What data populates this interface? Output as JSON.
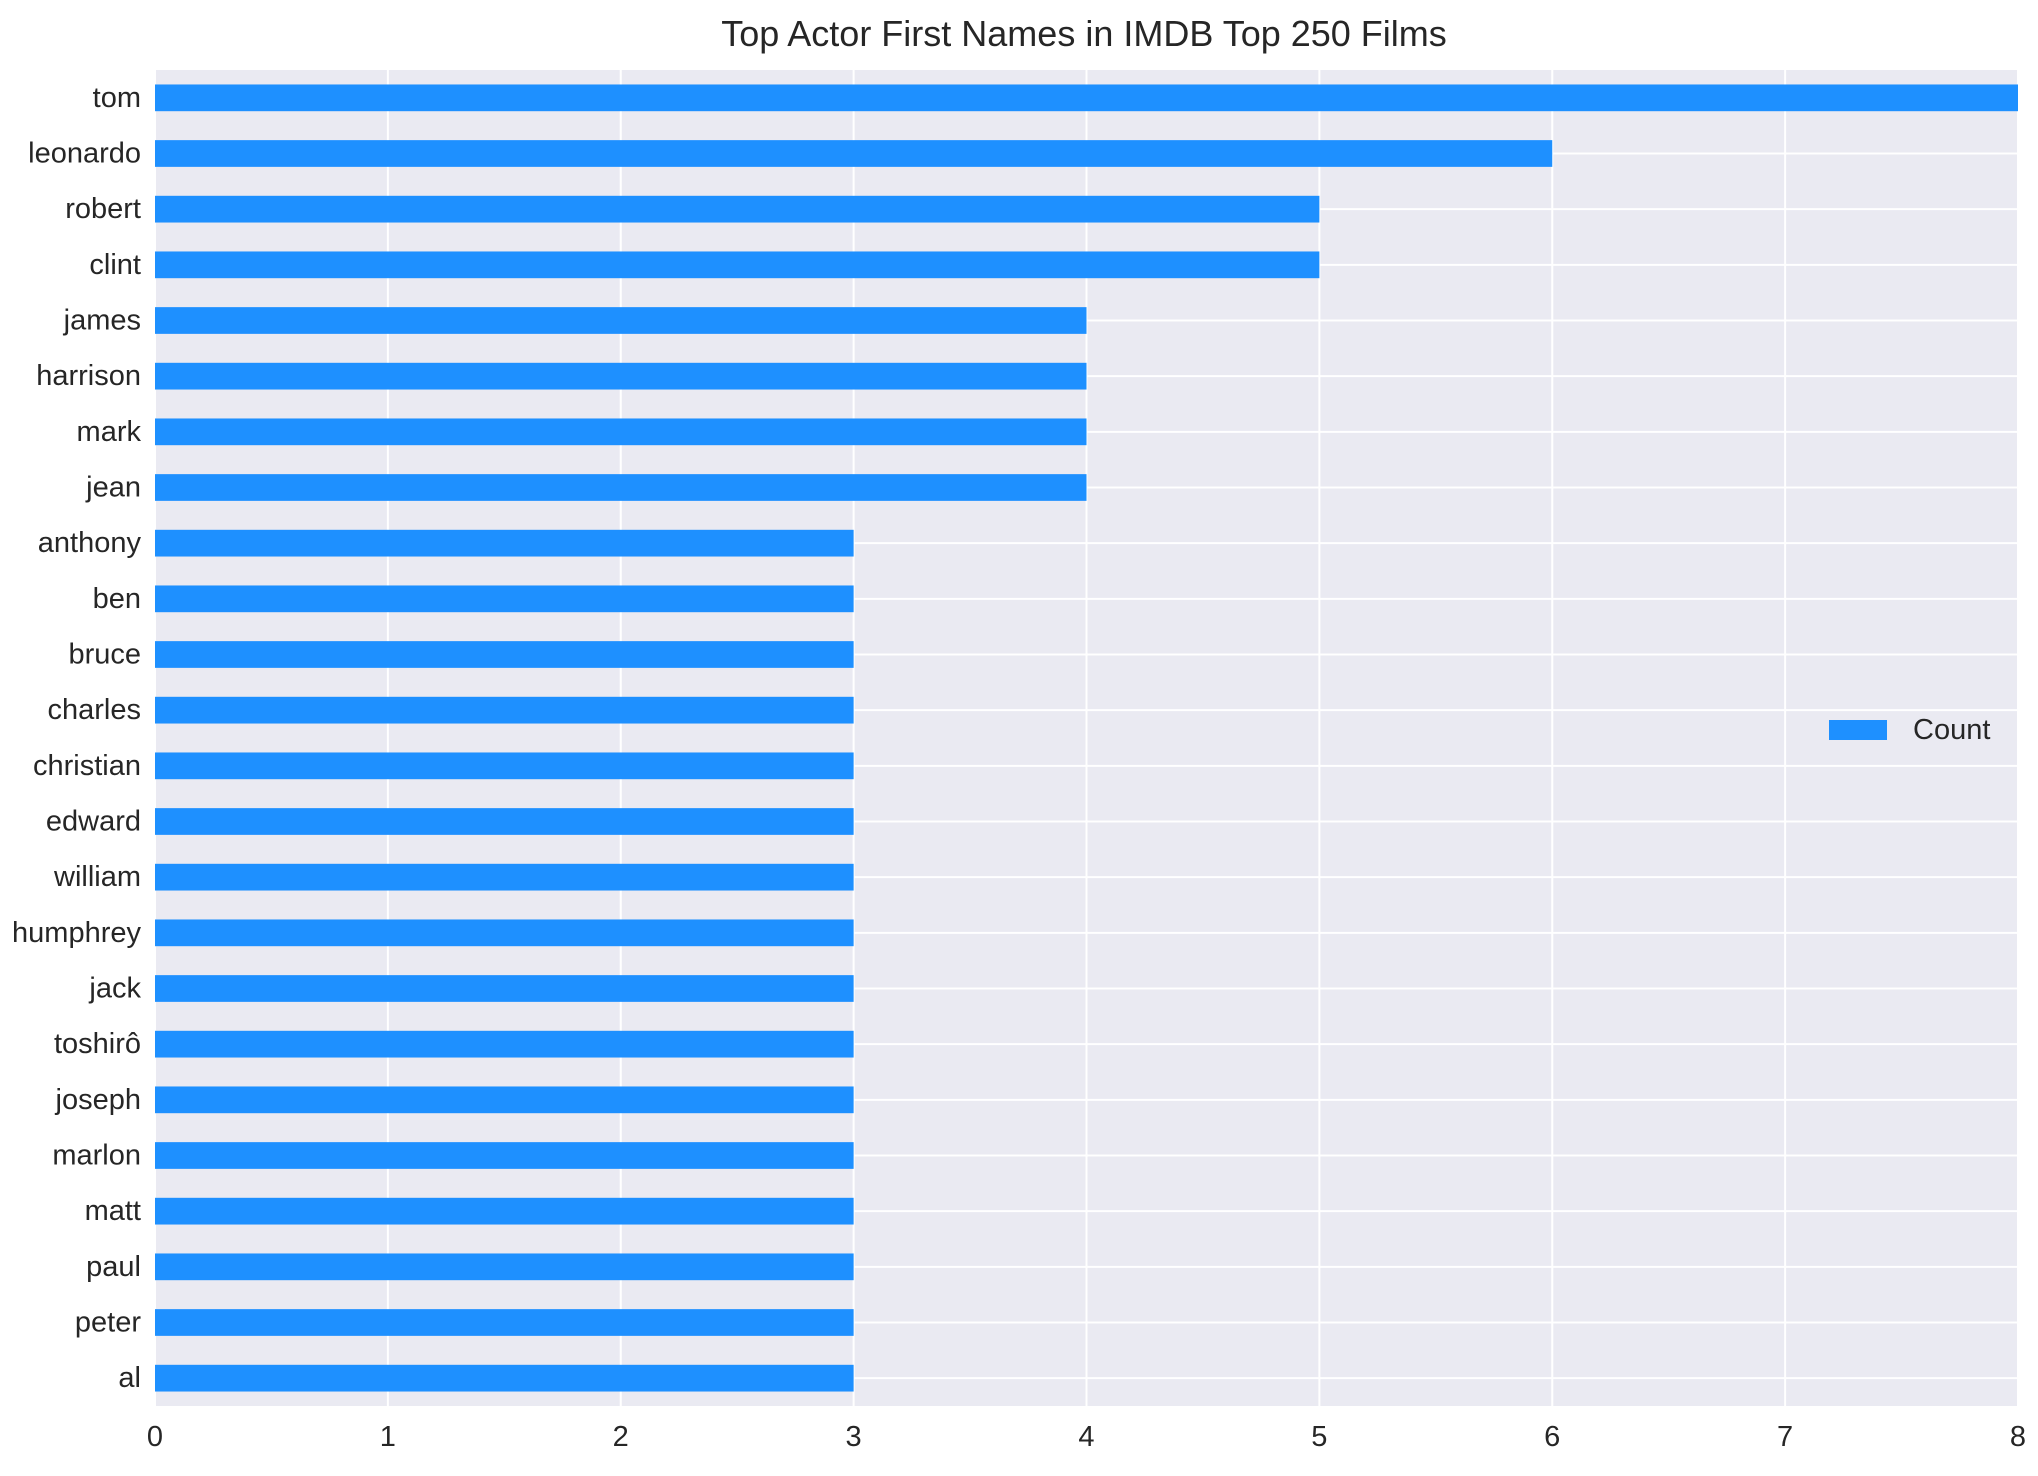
{
  "chart_data": {
    "type": "bar",
    "orientation": "horizontal",
    "title": "Top Actor First Names in IMDB Top 250 Films",
    "xlabel": "",
    "ylabel": "",
    "categories": [
      "tom",
      "leonardo",
      "robert",
      "clint",
      "james",
      "harrison",
      "mark",
      "jean",
      "anthony",
      "ben",
      "bruce",
      "charles",
      "christian",
      "edward",
      "william",
      "humphrey",
      "jack",
      "toshirô",
      "joseph",
      "marlon",
      "matt",
      "paul",
      "peter",
      "al"
    ],
    "series": [
      {
        "name": "Count",
        "values": [
          8,
          6,
          5,
          5,
          4,
          4,
          4,
          4,
          3,
          3,
          3,
          3,
          3,
          3,
          3,
          3,
          3,
          3,
          3,
          3,
          3,
          3,
          3,
          3
        ],
        "color": "#1e90ff"
      }
    ],
    "xlim": [
      0,
      8
    ],
    "xticks": [
      0,
      1,
      2,
      3,
      4,
      5,
      6,
      7,
      8
    ],
    "grid": true,
    "legend_position": "center-right",
    "colors": {
      "plot_background": "#eaeaf2",
      "grid": "#ffffff",
      "bar": "#1e90ff",
      "text": "#262626"
    }
  }
}
